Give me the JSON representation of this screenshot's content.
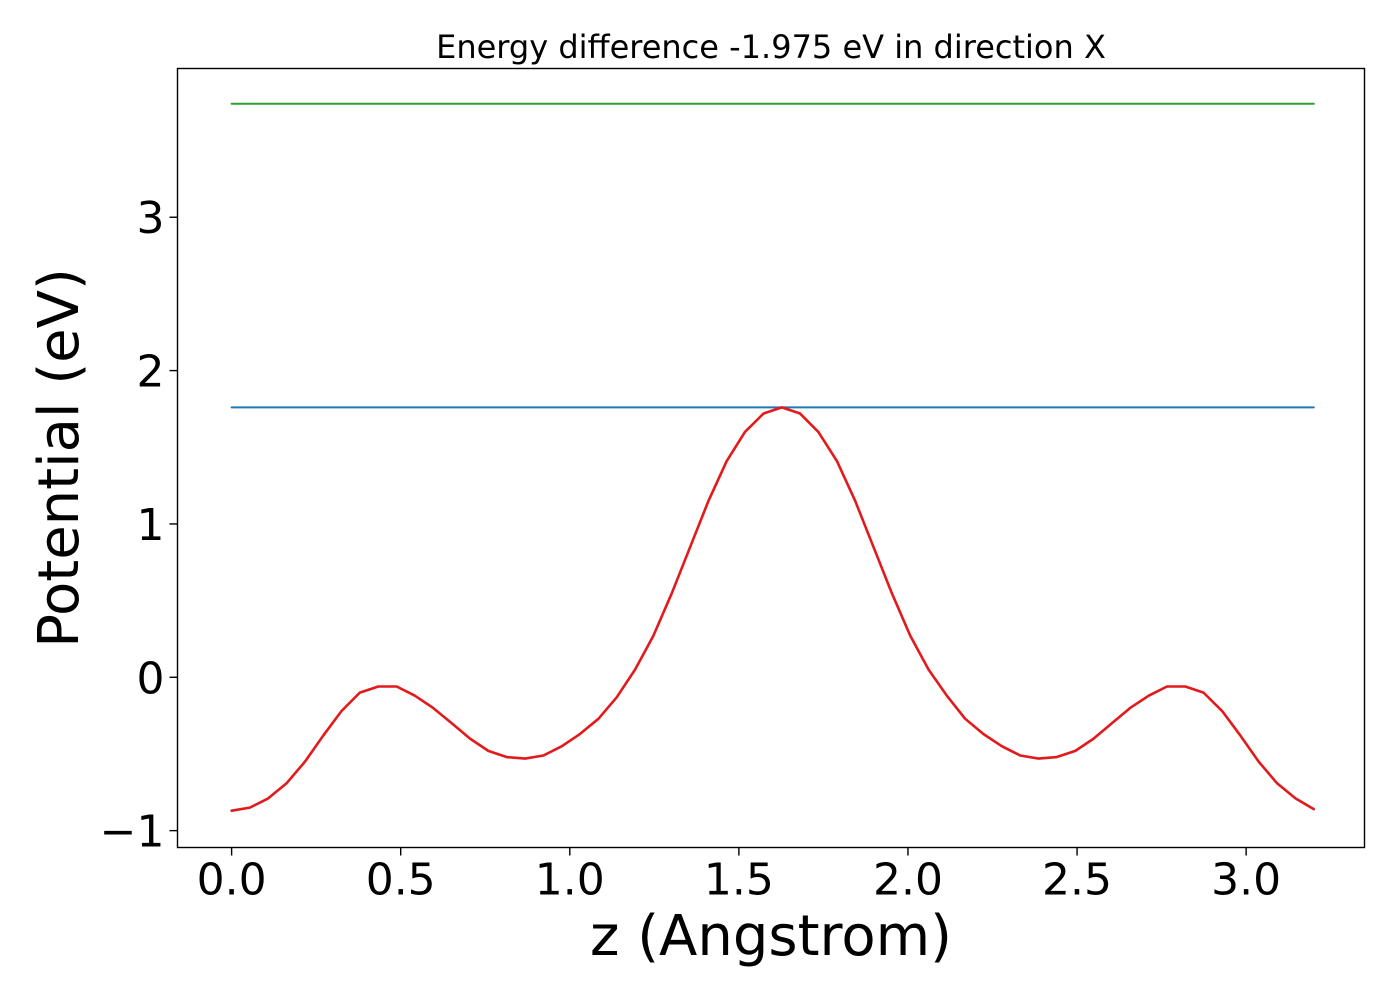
{
  "chart_data": {
    "type": "line",
    "title": "Energy difference -1.975 eV in direction X",
    "xlabel": "z (Angstrom)",
    "ylabel": "Potential (eV)",
    "xlim": [
      -0.16,
      3.35
    ],
    "ylim": [
      -1.11,
      3.97
    ],
    "x_ticks": [
      0.0,
      0.5,
      1.0,
      1.5,
      2.0,
      2.5,
      3.0
    ],
    "x_tick_labels": [
      "0.0",
      "0.5",
      "1.0",
      "1.5",
      "2.0",
      "2.5",
      "3.0"
    ],
    "y_ticks": [
      -1,
      0,
      1,
      2,
      3
    ],
    "y_tick_labels": [
      "−1",
      "0",
      "1",
      "2",
      "3"
    ],
    "grid": false,
    "series": [
      {
        "color": "#2ca02c",
        "x": [
          0.0,
          3.2
        ],
        "y": [
          3.74,
          3.74
        ]
      },
      {
        "color": "#1f77b4",
        "x": [
          0.0,
          3.2
        ],
        "y": [
          1.76,
          1.76
        ]
      },
      {
        "color": "#e31a1c",
        "x": [
          0.0,
          0.054,
          0.108,
          0.163,
          0.217,
          0.271,
          0.325,
          0.379,
          0.434,
          0.488,
          0.542,
          0.596,
          0.651,
          0.705,
          0.759,
          0.813,
          0.868,
          0.922,
          0.976,
          1.03,
          1.085,
          1.139,
          1.193,
          1.247,
          1.302,
          1.356,
          1.41,
          1.464,
          1.518,
          1.573,
          1.627,
          1.681,
          1.735,
          1.79,
          1.844,
          1.898,
          1.952,
          2.007,
          2.061,
          2.115,
          2.169,
          2.223,
          2.278,
          2.332,
          2.386,
          2.44,
          2.495,
          2.549,
          2.603,
          2.657,
          2.712,
          2.766,
          2.82,
          2.874,
          2.929,
          2.983,
          3.037,
          3.091,
          3.146,
          3.2
        ],
        "y": [
          -0.87,
          -0.85,
          -0.79,
          -0.69,
          -0.55,
          -0.38,
          -0.22,
          -0.1,
          -0.06,
          -0.06,
          -0.12,
          -0.2,
          -0.3,
          -0.4,
          -0.48,
          -0.52,
          -0.53,
          -0.51,
          -0.45,
          -0.37,
          -0.27,
          -0.13,
          0.05,
          0.27,
          0.55,
          0.85,
          1.15,
          1.41,
          1.6,
          1.72,
          1.76,
          1.72,
          1.6,
          1.41,
          1.15,
          0.85,
          0.55,
          0.27,
          0.05,
          -0.12,
          -0.27,
          -0.37,
          -0.45,
          -0.51,
          -0.53,
          -0.52,
          -0.48,
          -0.4,
          -0.3,
          -0.2,
          -0.12,
          -0.06,
          -0.06,
          -0.1,
          -0.22,
          -0.38,
          -0.55,
          -0.69,
          -0.79,
          -0.86
        ]
      }
    ]
  }
}
